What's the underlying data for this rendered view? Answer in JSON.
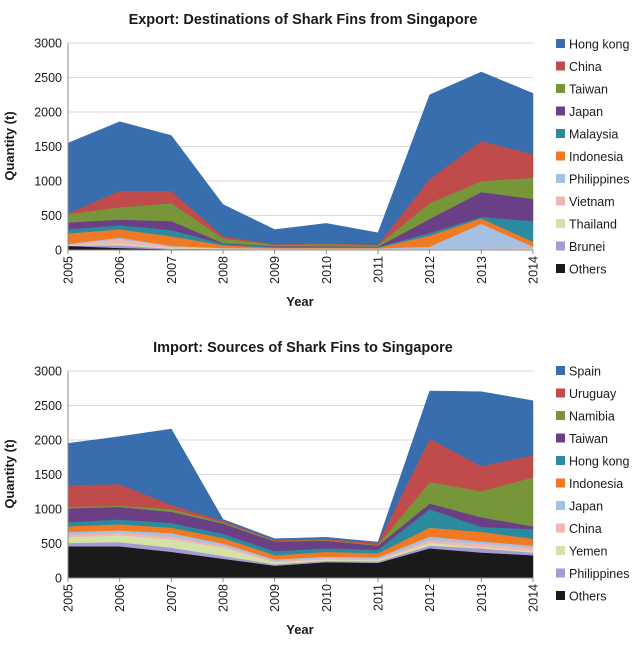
{
  "chart_data": [
    {
      "type": "area",
      "stacked": true,
      "title": "Export: Destinations of Shark Fins from Singapore",
      "xlabel": "Year",
      "ylabel": "Quantity (t)",
      "ylim": [
        0,
        3000
      ],
      "yticks": [
        0,
        500,
        1000,
        1500,
        2000,
        2500,
        3000
      ],
      "grid": true,
      "legend_position": "right",
      "categories": [
        "2005",
        "2006",
        "2007",
        "2008",
        "2009",
        "2010",
        "2011",
        "2012",
        "2013",
        "2014"
      ],
      "series": [
        {
          "name": "Others",
          "color": "#1a1a1a",
          "values": [
            60,
            30,
            10,
            10,
            5,
            5,
            5,
            5,
            5,
            5
          ]
        },
        {
          "name": "Brunei",
          "color": "#a79ad2",
          "values": [
            5,
            40,
            10,
            5,
            5,
            5,
            5,
            5,
            5,
            5
          ]
        },
        {
          "name": "Thailand",
          "color": "#d3e3a8",
          "values": [
            10,
            20,
            10,
            5,
            5,
            5,
            5,
            5,
            5,
            10
          ]
        },
        {
          "name": "Vietnam",
          "color": "#f0b6b3",
          "values": [
            5,
            70,
            20,
            5,
            5,
            5,
            5,
            5,
            5,
            10
          ]
        },
        {
          "name": "Philippines",
          "color": "#a5c1e2",
          "values": [
            10,
            20,
            10,
            5,
            5,
            5,
            5,
            30,
            360,
            20
          ]
        },
        {
          "name": "Indonesia",
          "color": "#f07a24",
          "values": [
            150,
            120,
            140,
            40,
            10,
            10,
            10,
            160,
            80,
            70
          ]
        },
        {
          "name": "Malaysia",
          "color": "#2b8a9e",
          "values": [
            60,
            60,
            90,
            20,
            10,
            10,
            10,
            40,
            20,
            300
          ]
        },
        {
          "name": "Japan",
          "color": "#6a3f86",
          "values": [
            100,
            80,
            130,
            10,
            10,
            10,
            5,
            200,
            360,
            320
          ]
        },
        {
          "name": "Taiwan",
          "color": "#77963a",
          "values": [
            120,
            180,
            260,
            70,
            20,
            30,
            20,
            230,
            160,
            310
          ]
        },
        {
          "name": "China",
          "color": "#c04b4b",
          "values": [
            10,
            240,
            180,
            30,
            10,
            10,
            10,
            350,
            580,
            340
          ]
        },
        {
          "name": "Hong kong",
          "color": "#386dae",
          "values": [
            1020,
            1000,
            800,
            460,
            210,
            290,
            170,
            1220,
            1000,
            880
          ]
        }
      ]
    },
    {
      "type": "area",
      "stacked": true,
      "title": "Import: Sources of Shark Fins to Singapore",
      "xlabel": "Year",
      "ylabel": "Quantity (t)",
      "ylim": [
        0,
        3000
      ],
      "yticks": [
        0,
        500,
        1000,
        1500,
        2000,
        2500,
        3000
      ],
      "grid": true,
      "legend_position": "right",
      "categories": [
        "2005",
        "2006",
        "2007",
        "2008",
        "2009",
        "2010",
        "2011",
        "2012",
        "2013",
        "2014"
      ],
      "series": [
        {
          "name": "Others",
          "color": "#1a1a1a",
          "values": [
            460,
            460,
            380,
            280,
            180,
            230,
            220,
            430,
            370,
            330
          ]
        },
        {
          "name": "Philippines",
          "color": "#a79ad2",
          "values": [
            50,
            60,
            60,
            40,
            20,
            20,
            20,
            40,
            60,
            40
          ]
        },
        {
          "name": "Yemen",
          "color": "#d3e3a8",
          "values": [
            80,
            100,
            120,
            120,
            30,
            20,
            20,
            40,
            20,
            20
          ]
        },
        {
          "name": "China",
          "color": "#f0b6b3",
          "values": [
            40,
            40,
            40,
            30,
            20,
            20,
            20,
            40,
            50,
            40
          ]
        },
        {
          "name": "Japan",
          "color": "#a5c1e2",
          "values": [
            40,
            30,
            50,
            30,
            20,
            20,
            20,
            50,
            30,
            40
          ]
        },
        {
          "name": "Indonesia",
          "color": "#f07a24",
          "values": [
            80,
            90,
            80,
            80,
            60,
            70,
            60,
            130,
            140,
            100
          ]
        },
        {
          "name": "Hong kong",
          "color": "#2b8a9e",
          "values": [
            60,
            70,
            70,
            60,
            60,
            50,
            50,
            270,
            70,
            140
          ]
        },
        {
          "name": "Taiwan",
          "color": "#6a3f86",
          "values": [
            200,
            180,
            160,
            150,
            140,
            110,
            60,
            80,
            140,
            40
          ]
        },
        {
          "name": "Namibia",
          "color": "#77963a",
          "values": [
            20,
            20,
            40,
            20,
            10,
            10,
            10,
            310,
            380,
            710
          ]
        },
        {
          "name": "Uruguay",
          "color": "#c04b4b",
          "values": [
            320,
            310,
            60,
            20,
            10,
            20,
            30,
            630,
            360,
            320
          ]
        },
        {
          "name": "Spain",
          "color": "#386dae",
          "values": [
            600,
            690,
            1100,
            20,
            20,
            20,
            10,
            690,
            1080,
            790
          ]
        }
      ]
    }
  ]
}
